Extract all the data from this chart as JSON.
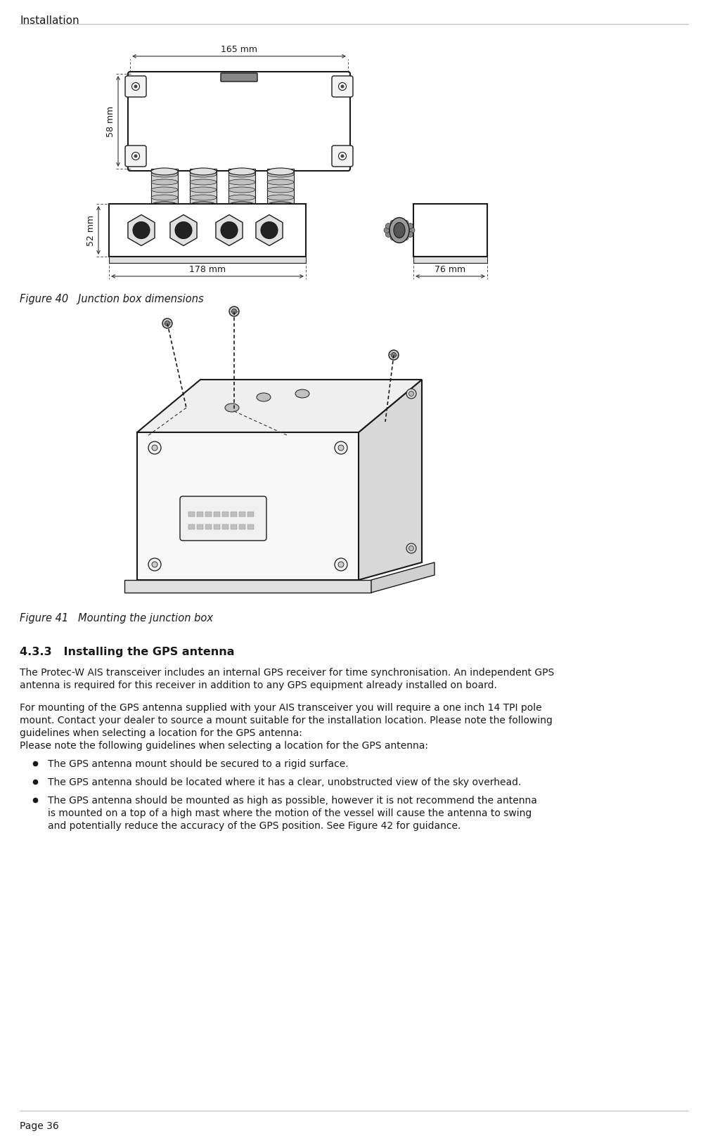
{
  "page_header": "Installation",
  "figure40_caption": "Figure 40   Junction box dimensions",
  "figure41_caption": "Figure 41   Mounting the junction box",
  "section_heading": "4.3.3   Installing the GPS antenna",
  "para1_line1": "The Protec-W AIS transceiver includes an internal GPS receiver for time synchronisation. An independent GPS",
  "para1_line2": "antenna is required for this receiver in addition to any GPS equipment already installed on board.",
  "para2_line1": "For mounting of the GPS antenna supplied with your AIS transceiver you will require a one inch 14 TPI pole",
  "para2_line2": "mount. Contact your dealer to source a mount suitable for the installation location. Please note the following",
  "para2_line3": "guidelines when selecting a location for the GPS antenna:",
  "bullet1": "The GPS antenna mount should be secured to a rigid surface.",
  "bullet2": "The GPS antenna should be located where it has a clear, unobstructed view of the sky overhead.",
  "bullet3_line1": "The GPS antenna should be mounted as high as possible, however it is not recommend the antenna",
  "bullet3_line2": "is mounted on a top of a high mast where the motion of the vessel will cause the antenna to swing",
  "bullet3_line3": "and potentially reduce the accuracy of the GPS position. See Figure 42 for guidance.",
  "page_footer": "Page 36",
  "dim_165": "165 mm",
  "dim_58": "58 mm",
  "dim_178": "178 mm",
  "dim_52": "52 mm",
  "dim_76": "76 mm",
  "bg_color": "#ffffff",
  "text_color": "#000000",
  "line_color": "#1a1a1a",
  "dim_line_color": "#333333",
  "gray_light": "#e8e8e8",
  "gray_mid": "#aaaaaa",
  "gray_dark": "#555555"
}
